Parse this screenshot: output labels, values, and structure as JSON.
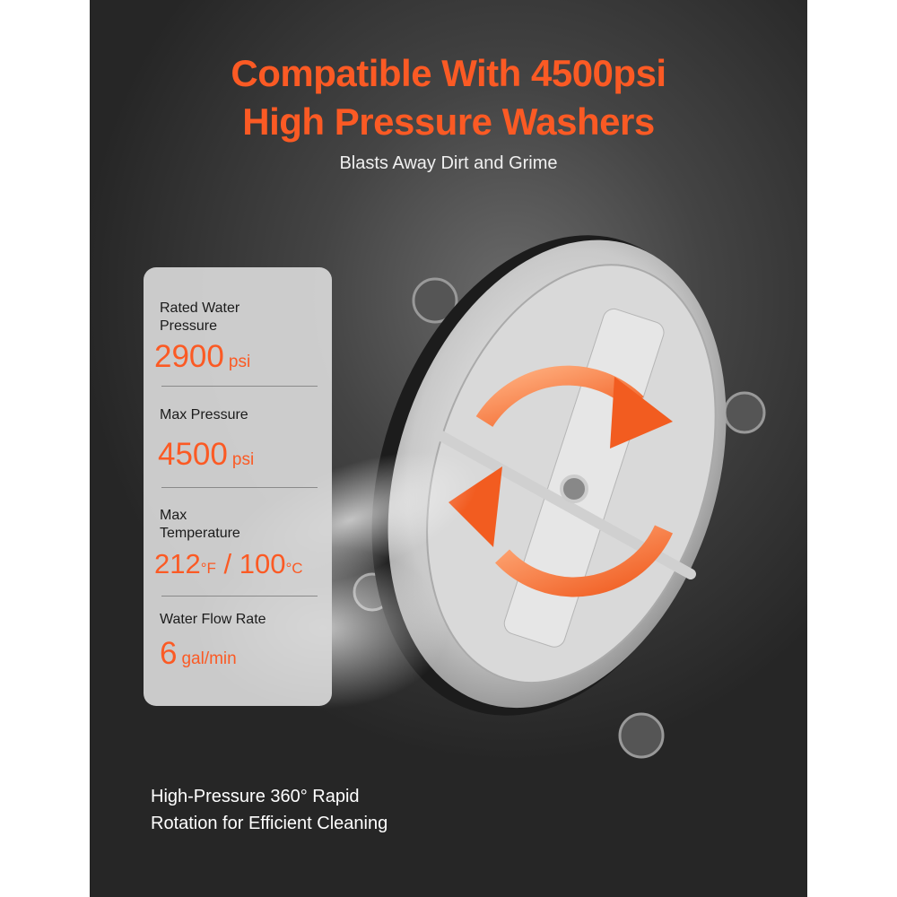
{
  "headline": {
    "line1": "Compatible With 4500psi",
    "line2": "High Pressure Washers"
  },
  "subtitle": "Blasts Away Dirt and Grime",
  "specs": [
    {
      "label_line1": "Rated Water",
      "label_line2": "Pressure",
      "value": "2900",
      "unit": "psi"
    },
    {
      "label_line1": "Max Pressure",
      "value": "4500",
      "unit": "psi"
    },
    {
      "label_line1": "Max",
      "label_line2": "Temperature",
      "value_f": "212",
      "unit_f": "°F",
      "sep": " / ",
      "value_c": "100",
      "unit_c": "°C"
    },
    {
      "label_line1": "Water Flow Rate",
      "value": "6",
      "unit": "gal/min"
    }
  ],
  "footer": {
    "line1": "High-Pressure 360° Rapid",
    "line2": "Rotation for Efficient Cleaning"
  },
  "colors": {
    "accent": "#fb5a24",
    "background": "#333333",
    "card": "#d7d7d7"
  },
  "icons": [
    "rotation-arrows-icon"
  ]
}
